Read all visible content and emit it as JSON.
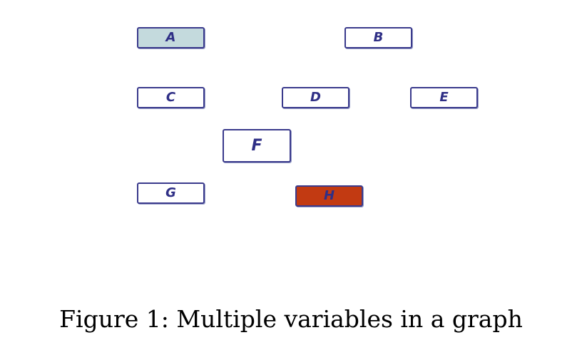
{
  "nodes": [
    {
      "id": "A",
      "label": "A",
      "fill": "#c4dadd",
      "size": "small"
    },
    {
      "id": "B",
      "label": "B",
      "fill": "#ffffff",
      "size": "small"
    },
    {
      "id": "C",
      "label": "C",
      "fill": "#ffffff",
      "size": "small"
    },
    {
      "id": "D",
      "label": "D",
      "fill": "#ffffff",
      "size": "small"
    },
    {
      "id": "E",
      "label": "E",
      "fill": "#ffffff",
      "size": "small"
    },
    {
      "id": "F",
      "label": "F",
      "fill": "#ffffff",
      "size": "large"
    },
    {
      "id": "G",
      "label": "G",
      "fill": "#ffffff",
      "size": "small"
    },
    {
      "id": "H",
      "label": "H",
      "fill": "#c23a12",
      "size": "small"
    }
  ],
  "caption": "Figure 1: Multiple variables in a graph",
  "colors": {
    "node_border": "#3a3a8c",
    "node_text": "#2f2f86"
  }
}
